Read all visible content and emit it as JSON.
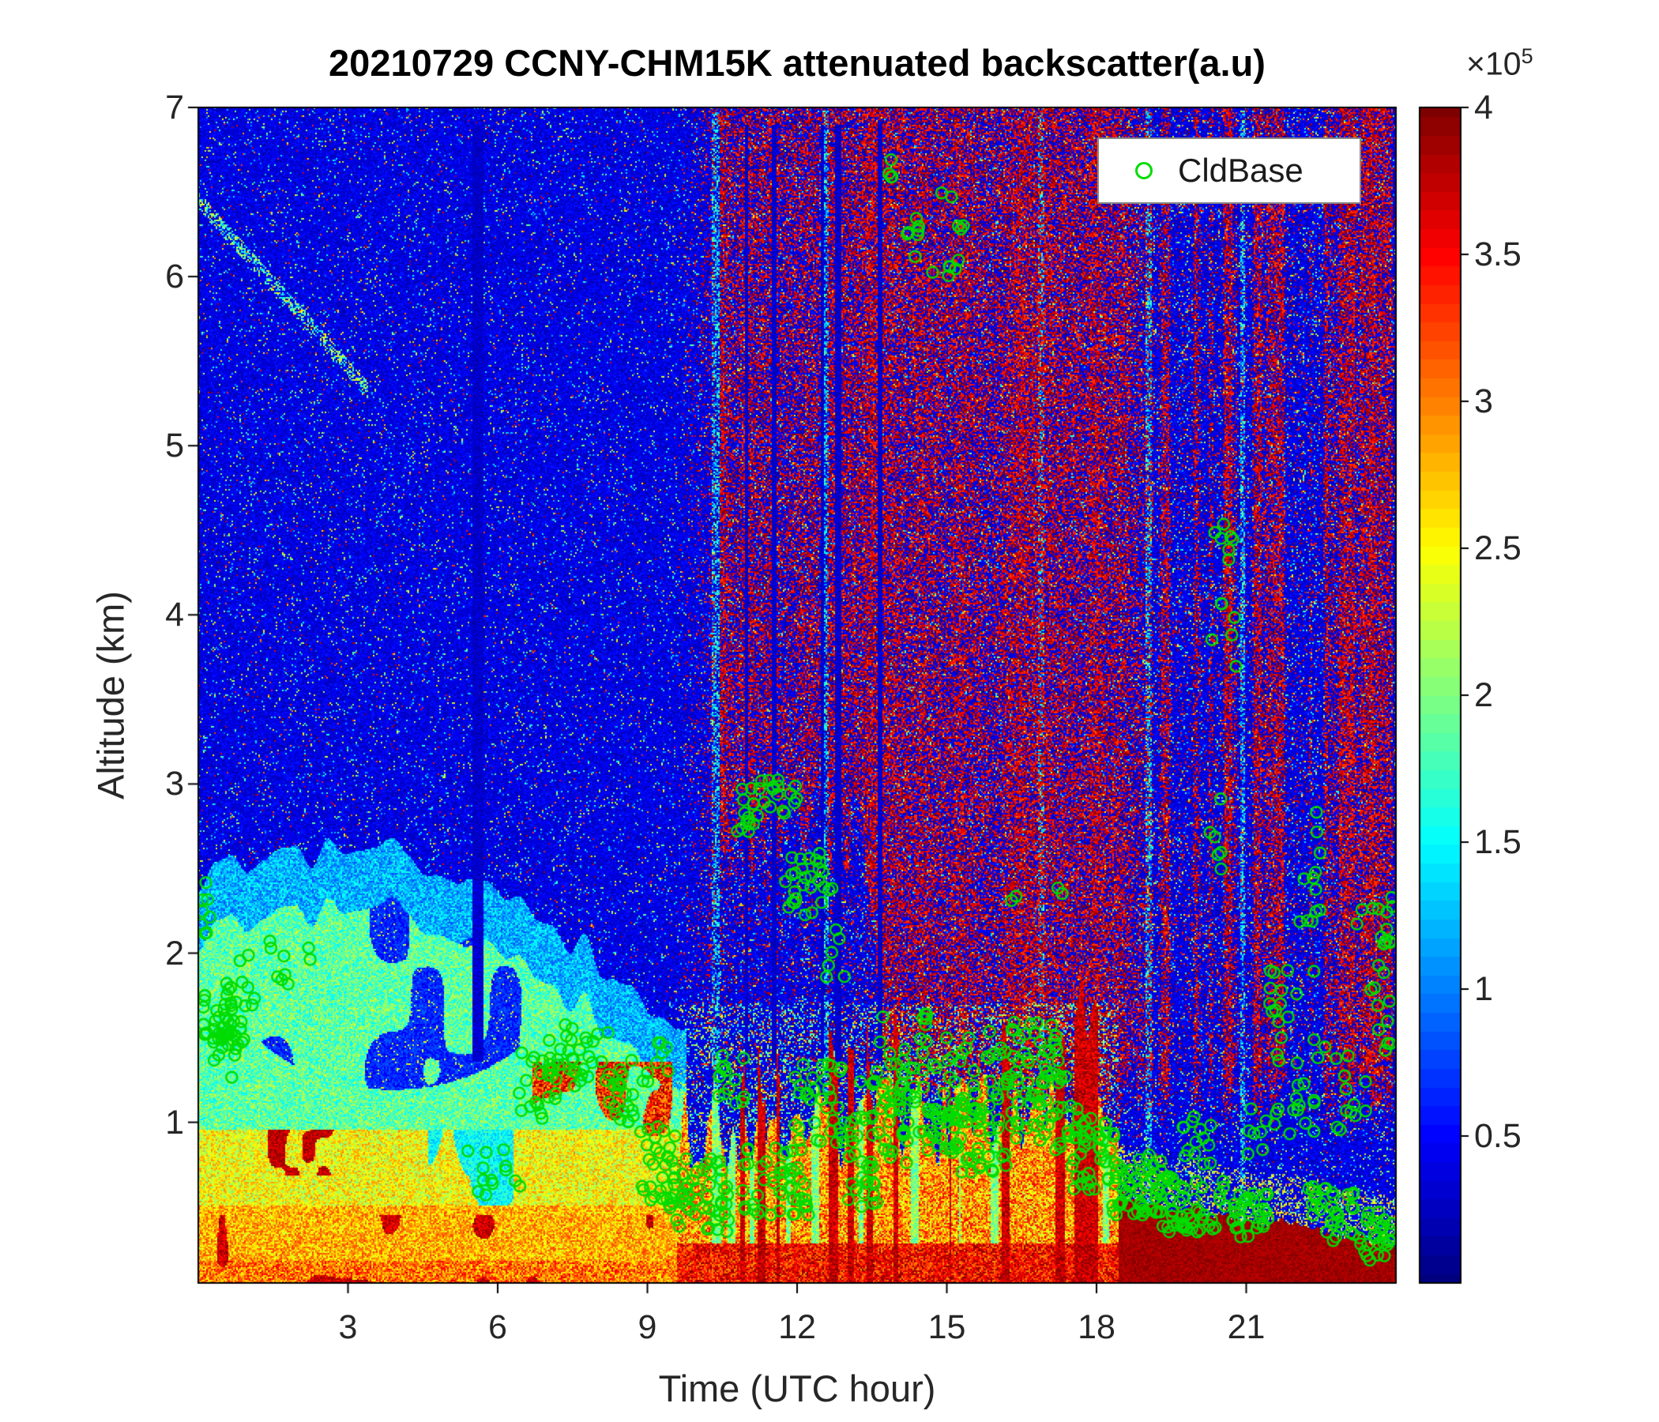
{
  "title": "20210729 CCNY-CHM15K attenuated backscatter(a.u)",
  "xlabel": "Time (UTC hour)",
  "ylabel": "Altitude (km)",
  "legend": {
    "label": "CldBase",
    "marker_color": "#00dc00"
  },
  "colorbar_exponent": {
    "base": "×10",
    "power": "5"
  },
  "chart_data": {
    "type": "heatmap",
    "title": "20210729 CCNY-CHM15K attenuated backscatter(a.u)",
    "description": "Ceilometer (CHM15K) attenuated backscatter time-height curtain plot for 2021-07-29 at CCNY, jet colormap, with green open-circle cloud-base detections.",
    "x": {
      "label": "Time (UTC hour)",
      "range": [
        0,
        24
      ],
      "ticks": [
        3,
        6,
        9,
        12,
        15,
        18,
        21
      ]
    },
    "y": {
      "label": "Altitude (km)",
      "range": [
        0.05,
        7
      ],
      "ticks": [
        1,
        2,
        3,
        4,
        5,
        6,
        7
      ]
    },
    "colorbar": {
      "range": [
        0,
        400000
      ],
      "ticks": [
        0.5,
        1,
        1.5,
        2,
        2.5,
        3,
        3.5,
        4
      ],
      "tick_labels": [
        "0.5",
        "1",
        "1.5",
        "2",
        "2.5",
        "3",
        "3.5",
        "4"
      ],
      "units_exponent": 5,
      "colormap": "jet"
    },
    "legend": [
      {
        "label": "CldBase",
        "marker": "green-open-circle"
      }
    ],
    "features": {
      "pbl_top_km": [
        [
          0,
          2.45
        ],
        [
          2,
          2.6
        ],
        [
          4,
          2.65
        ],
        [
          5,
          2.5
        ],
        [
          6,
          2.35
        ],
        [
          7,
          2.15
        ],
        [
          8,
          2.0
        ],
        [
          9,
          1.7
        ],
        [
          9.6,
          1.5
        ]
      ],
      "mixed_layer_top_km": [
        [
          9.6,
          0.9
        ],
        [
          11,
          0.85
        ],
        [
          12,
          0.9
        ],
        [
          13,
          0.85
        ],
        [
          14,
          0.95
        ],
        [
          15,
          0.9
        ],
        [
          16,
          1.0
        ],
        [
          17,
          1.05
        ],
        [
          18,
          0.95
        ],
        [
          18.8,
          0.8
        ]
      ],
      "surface_saturated_top_km": [
        [
          18.4,
          0.58
        ],
        [
          19,
          0.52
        ],
        [
          20,
          0.48
        ],
        [
          21,
          0.42
        ],
        [
          22,
          0.38
        ],
        [
          23,
          0.33
        ],
        [
          24,
          0.28
        ]
      ],
      "red_noise_density": [
        [
          9.6,
          0
        ],
        [
          10.35,
          0.17
        ],
        [
          10.45,
          0.5
        ],
        [
          13.5,
          0.52
        ],
        [
          18.8,
          0.5
        ],
        [
          19.05,
          0.2
        ],
        [
          24,
          0.2
        ]
      ],
      "attenuation_top_km": [
        [
          0,
          1.2
        ],
        [
          10.35,
          1.2
        ],
        [
          10.5,
          2.7
        ],
        [
          13.3,
          2.7
        ],
        [
          13.85,
          1.05
        ],
        [
          24,
          1.05
        ]
      ],
      "light_columns_utc": [
        [
          10.28,
          10.44
        ],
        [
          12.55,
          12.64
        ],
        [
          16.85,
          16.97
        ],
        [
          19.0,
          19.12
        ],
        [
          20.9,
          20.99
        ]
      ]
    },
    "cloud_base_clusters": {
      "format": [
        "t_start_utc",
        "t_end_utc",
        "alt_start_km",
        "alt_end_km",
        "count"
      ],
      "boxes": [
        [
          0.0,
          0.25,
          2.0,
          2.42,
          8
        ],
        [
          0.05,
          0.7,
          1.45,
          1.8,
          26
        ],
        [
          0.3,
          0.95,
          1.25,
          1.6,
          22
        ],
        [
          0.55,
          1.15,
          1.65,
          2.0,
          12
        ],
        [
          1.4,
          2.15,
          1.8,
          2.1,
          7
        ],
        [
          2.2,
          2.4,
          1.95,
          2.05,
          2
        ],
        [
          5.3,
          6.15,
          0.55,
          0.95,
          9
        ],
        [
          6.1,
          6.45,
          0.62,
          0.8,
          4
        ],
        [
          6.4,
          7.2,
          1.0,
          1.45,
          22
        ],
        [
          7.0,
          8.3,
          1.15,
          1.58,
          32
        ],
        [
          8.2,
          9.05,
          1.0,
          1.42,
          24
        ],
        [
          9.1,
          9.45,
          1.3,
          1.5,
          6
        ],
        [
          8.85,
          9.6,
          0.5,
          0.98,
          26
        ],
        [
          9.4,
          10.65,
          0.35,
          0.8,
          55
        ],
        [
          10.4,
          10.95,
          1.1,
          1.45,
          14
        ],
        [
          10.75,
          11.35,
          2.7,
          3.0,
          16
        ],
        [
          11.25,
          12.0,
          2.82,
          3.06,
          14
        ],
        [
          11.75,
          12.45,
          2.2,
          2.62,
          20
        ],
        [
          12.35,
          12.75,
          2.28,
          2.55,
          8
        ],
        [
          10.9,
          12.25,
          0.45,
          0.85,
          48
        ],
        [
          11.9,
          13.05,
          0.85,
          1.35,
          34
        ],
        [
          12.55,
          12.95,
          1.85,
          2.2,
          6
        ],
        [
          12.95,
          14.2,
          0.7,
          1.3,
          40
        ],
        [
          13.0,
          13.6,
          0.5,
          0.8,
          18
        ],
        [
          13.55,
          14.6,
          1.05,
          1.65,
          32
        ],
        [
          13.8,
          14.05,
          6.5,
          6.72,
          4
        ],
        [
          14.15,
          15.35,
          5.95,
          6.5,
          18
        ],
        [
          14.0,
          15.2,
          0.82,
          1.1,
          20
        ],
        [
          14.55,
          15.6,
          1.0,
          1.5,
          32
        ],
        [
          14.95,
          16.2,
          0.7,
          1.12,
          45
        ],
        [
          15.75,
          17.25,
          1.1,
          1.62,
          50
        ],
        [
          16.2,
          17.9,
          0.82,
          1.3,
          45
        ],
        [
          16.28,
          16.42,
          2.3,
          2.48,
          2
        ],
        [
          17.2,
          17.42,
          2.28,
          2.42,
          2
        ],
        [
          17.45,
          18.45,
          0.6,
          1.0,
          40
        ],
        [
          18.3,
          19.35,
          0.45,
          0.82,
          50
        ],
        [
          19.2,
          20.55,
          0.35,
          0.68,
          55
        ],
        [
          19.55,
          20.3,
          0.72,
          1.05,
          14
        ],
        [
          20.3,
          20.85,
          3.3,
          4.5,
          11
        ],
        [
          20.5,
          20.75,
          4.4,
          4.6,
          2
        ],
        [
          20.25,
          20.7,
          2.4,
          2.95,
          6
        ],
        [
          20.55,
          21.45,
          0.3,
          0.58,
          32
        ],
        [
          21.0,
          21.65,
          0.78,
          1.2,
          10
        ],
        [
          21.35,
          22.1,
          1.35,
          2.1,
          16
        ],
        [
          21.85,
          22.45,
          0.9,
          1.5,
          13
        ],
        [
          22.05,
          22.5,
          1.85,
          2.85,
          13
        ],
        [
          22.25,
          23.2,
          0.3,
          0.62,
          32
        ],
        [
          22.55,
          23.4,
          0.95,
          1.5,
          13
        ],
        [
          23.15,
          23.9,
          1.45,
          2.3,
          16
        ],
        [
          23.25,
          24.0,
          0.18,
          0.48,
          28
        ],
        [
          23.75,
          24.0,
          1.25,
          2.4,
          9
        ]
      ]
    }
  }
}
